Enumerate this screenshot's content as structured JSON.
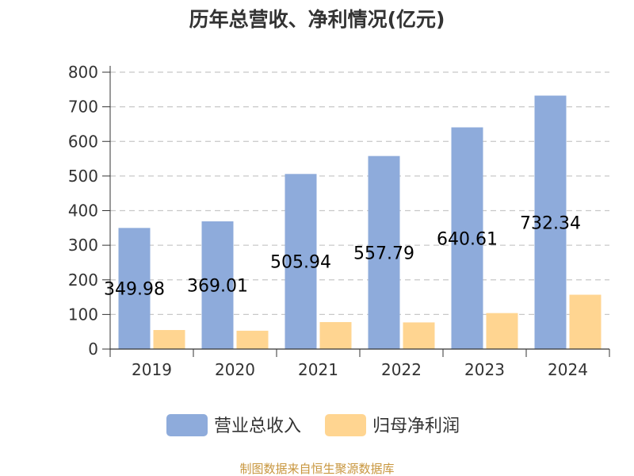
{
  "chart_data": {
    "type": "bar",
    "title": "历年总营收、净利情况(亿元)",
    "categories": [
      "2019",
      "2020",
      "2021",
      "2022",
      "2023",
      "2024"
    ],
    "ylim": [
      0,
      800
    ],
    "yticks": [
      "0",
      "100",
      "200",
      "300",
      "400",
      "500",
      "600",
      "700",
      "800"
    ],
    "grid": true,
    "legend_position": "bottom",
    "series": [
      {
        "name": "营业总收入",
        "color": "#8eabdb",
        "values": [
          349.98,
          369.01,
          505.94,
          557.79,
          640.61,
          732.34
        ],
        "labels": [
          "349.98",
          "369.01",
          "505.94",
          "557.79",
          "640.61",
          "732.34"
        ]
      },
      {
        "name": "归母净利润",
        "color": "#ffd591",
        "values": [
          55,
          53,
          78,
          77,
          104,
          157
        ]
      }
    ]
  },
  "source": "制图数据来自恒生聚源数据库"
}
